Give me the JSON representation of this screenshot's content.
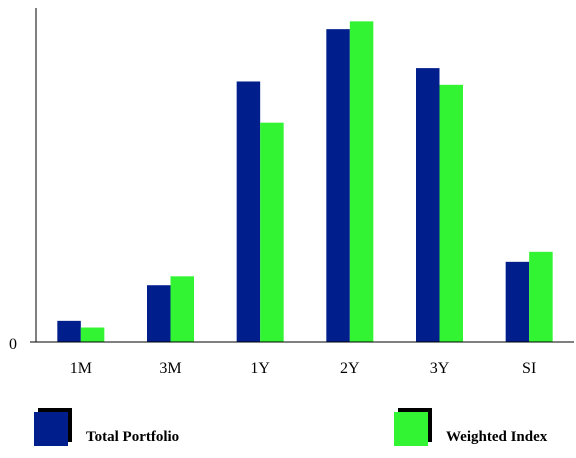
{
  "chart_data": {
    "type": "bar",
    "title": "",
    "xlabel": "",
    "ylabel": "",
    "categories": [
      "1M",
      "3M",
      "1Y",
      "2Y",
      "3Y",
      "SI"
    ],
    "y_tick_labels": [
      "0"
    ],
    "ylim": [
      0,
      300
    ],
    "grid": false,
    "legend_position": "bottom",
    "series": [
      {
        "name": "Total Portfolio",
        "color": "#001E8C",
        "values": [
          19,
          51,
          234,
          281,
          246,
          72
        ]
      },
      {
        "name": "Weighted Index",
        "color": "#33F433",
        "values": [
          13,
          59,
          197,
          288,
          231,
          81
        ]
      }
    ]
  }
}
